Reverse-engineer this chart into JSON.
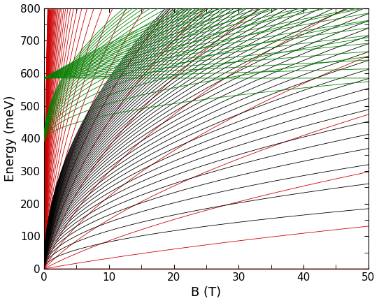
{
  "B_max": 50,
  "E_max": 800,
  "C_mono": 26.1,
  "C_bi": 26.1,
  "gamma1_meV": 390,
  "xlabel": "B (T)",
  "ylabel": "Energy (meV)",
  "mono_color": "#000000",
  "bi_color": "#cc0000",
  "high_color": "#008000",
  "n_mono": 50,
  "n_bi": 50,
  "n_high": 20,
  "linewidth": 0.6,
  "figsize": [
    5.42,
    4.34
  ],
  "dpi": 100,
  "E0_green": 390,
  "xticks": [
    0,
    10,
    20,
    30,
    40,
    50
  ],
  "yticks": [
    0,
    100,
    200,
    300,
    400,
    500,
    600,
    700,
    800
  ]
}
